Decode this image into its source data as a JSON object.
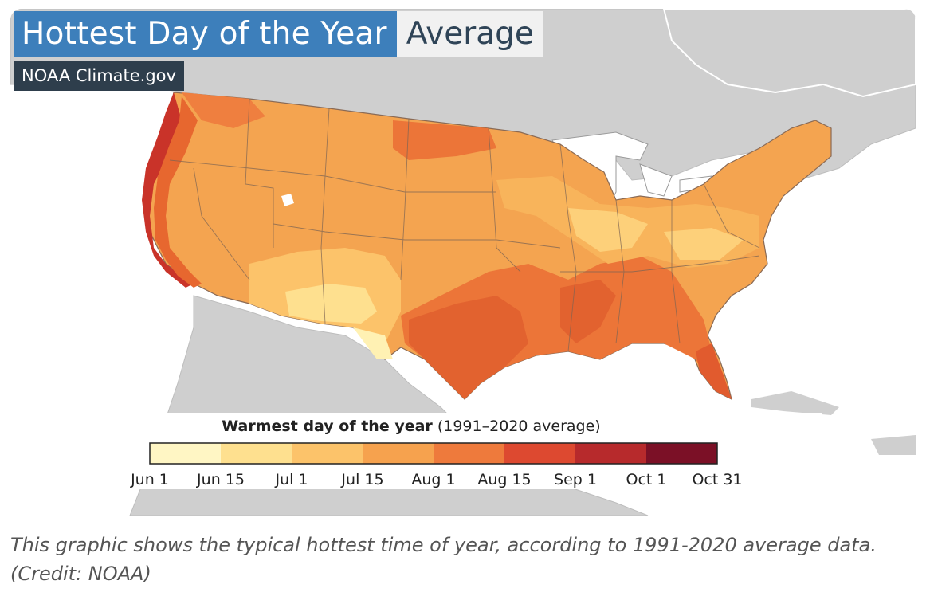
{
  "map": {
    "title": "Hottest Day of the Year",
    "title_tag": "Average",
    "source_badge": "NOAA Climate.gov"
  },
  "legend": {
    "title_bold": "Warmest day of the year",
    "title_rest": "(1991–2020 average)",
    "bins": [
      {
        "label": "Jun 1",
        "color": "#fff6c4"
      },
      {
        "label": "Jun 15",
        "color": "#fee08f"
      },
      {
        "label": "Jul 1",
        "color": "#fcc36a"
      },
      {
        "label": "Jul 15",
        "color": "#f6a24e"
      },
      {
        "label": "Aug 1",
        "color": "#ee7a3c"
      },
      {
        "label": "Aug 15",
        "color": "#dd4930"
      },
      {
        "label": "Sep 1",
        "color": "#b72a2c"
      },
      {
        "label": "Oct 1",
        "color": "#7b1026"
      }
    ],
    "end_label": "Oct 31"
  },
  "colors": {
    "land": "#cfcfcf",
    "ocean": "#ffffff",
    "title_bg": "#3d7fbb",
    "badge_bg": "#2e3e4c"
  },
  "caption": "This graphic shows the typical hottest time of year, according to 1991-2020 average data. (Credit: NOAA)"
}
